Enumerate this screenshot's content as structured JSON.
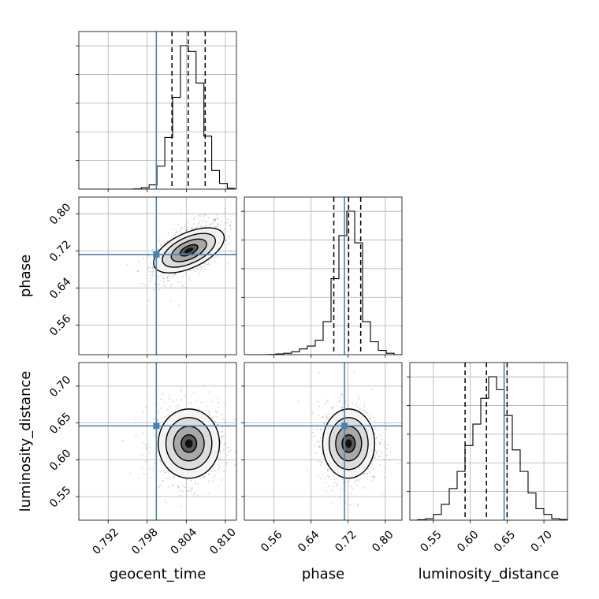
{
  "chart_data": {
    "type": "corner",
    "parameters": [
      "geocent_time",
      "phase",
      "luminosity_distance"
    ],
    "axis_labels": {
      "x": [
        "geocent_time",
        "phase",
        "luminosity_distance"
      ],
      "y": [
        "phase",
        "luminosity_distance"
      ]
    },
    "ranges": {
      "geocent_time": [
        0.7875,
        0.8117
      ],
      "phase": [
        0.496,
        0.836
      ],
      "luminosity_distance": [
        0.518,
        0.732
      ]
    },
    "ticks": {
      "geocent_time": [
        "0.792",
        "0.798",
        "0.804",
        "0.810"
      ],
      "phase": [
        "0.56",
        "0.64",
        "0.72",
        "0.80"
      ],
      "luminosity_distance": [
        "0.55",
        "0.60",
        "0.65",
        "0.70"
      ]
    },
    "truths": {
      "geocent_time": 0.7994,
      "phase": 0.712,
      "luminosity_distance": 0.646
    },
    "truth_color": "#4682b4",
    "grid": true,
    "marginals": {
      "geocent_time": {
        "bin_edges": [
          0.7875,
          0.7887,
          0.7899,
          0.7911,
          0.7923,
          0.7935,
          0.7947,
          0.7959,
          0.7971,
          0.7983,
          0.7995,
          0.8007,
          0.8019,
          0.8031,
          0.8043,
          0.8055,
          0.8067,
          0.8079,
          0.8091,
          0.8103,
          0.8115
        ],
        "counts": [
          0,
          0,
          0,
          0,
          0,
          0,
          0,
          0.2,
          1,
          3,
          16,
          36,
          64,
          100,
          96,
          74,
          37,
          13,
          4,
          0.6
        ],
        "quantiles": [
          0.8018,
          0.8043,
          0.8069
        ]
      },
      "phase": {
        "bin_edges": [
          0.496,
          0.513,
          0.53,
          0.547,
          0.564,
          0.581,
          0.598,
          0.615,
          0.632,
          0.649,
          0.666,
          0.683,
          0.7,
          0.717,
          0.734,
          0.751,
          0.768,
          0.785,
          0.802,
          0.819,
          0.836
        ],
        "counts": [
          0,
          0,
          0,
          0.1,
          0.5,
          1,
          2,
          4,
          6,
          10,
          23,
          53,
          83,
          100,
          78,
          23,
          9,
          3,
          1,
          0
        ],
        "quantiles": [
          0.689,
          0.721,
          0.747
        ]
      },
      "luminosity_distance": {
        "bin_edges": [
          0.518,
          0.5287,
          0.5394,
          0.5501,
          0.5608,
          0.5715,
          0.5822,
          0.5929,
          0.6036,
          0.6143,
          0.625,
          0.6357,
          0.6464,
          0.6571,
          0.6678,
          0.6785,
          0.6892,
          0.6999,
          0.7106,
          0.7213,
          0.732
        ],
        "counts": [
          0,
          0.3,
          1,
          4,
          11,
          22,
          34,
          52,
          67,
          85,
          100,
          91,
          73,
          49,
          34,
          19,
          8,
          4,
          1,
          0.5
        ],
        "quantiles": [
          0.593,
          0.622,
          0.65
        ]
      }
    },
    "joint_2d": [
      {
        "x": "geocent_time",
        "y": "phase",
        "mean": [
          0.8044,
          0.721
        ],
        "std": [
          0.00235,
          0.028
        ],
        "corr": 0.55
      },
      {
        "x": "geocent_time",
        "y": "luminosity_distance",
        "mean": [
          0.8044,
          0.622
        ],
        "std": [
          0.00235,
          0.0235
        ],
        "corr": 0.0
      },
      {
        "x": "phase",
        "y": "luminosity_distance",
        "mean": [
          0.721,
          0.622
        ],
        "std": [
          0.028,
          0.0235
        ],
        "corr": 0.0
      }
    ]
  }
}
